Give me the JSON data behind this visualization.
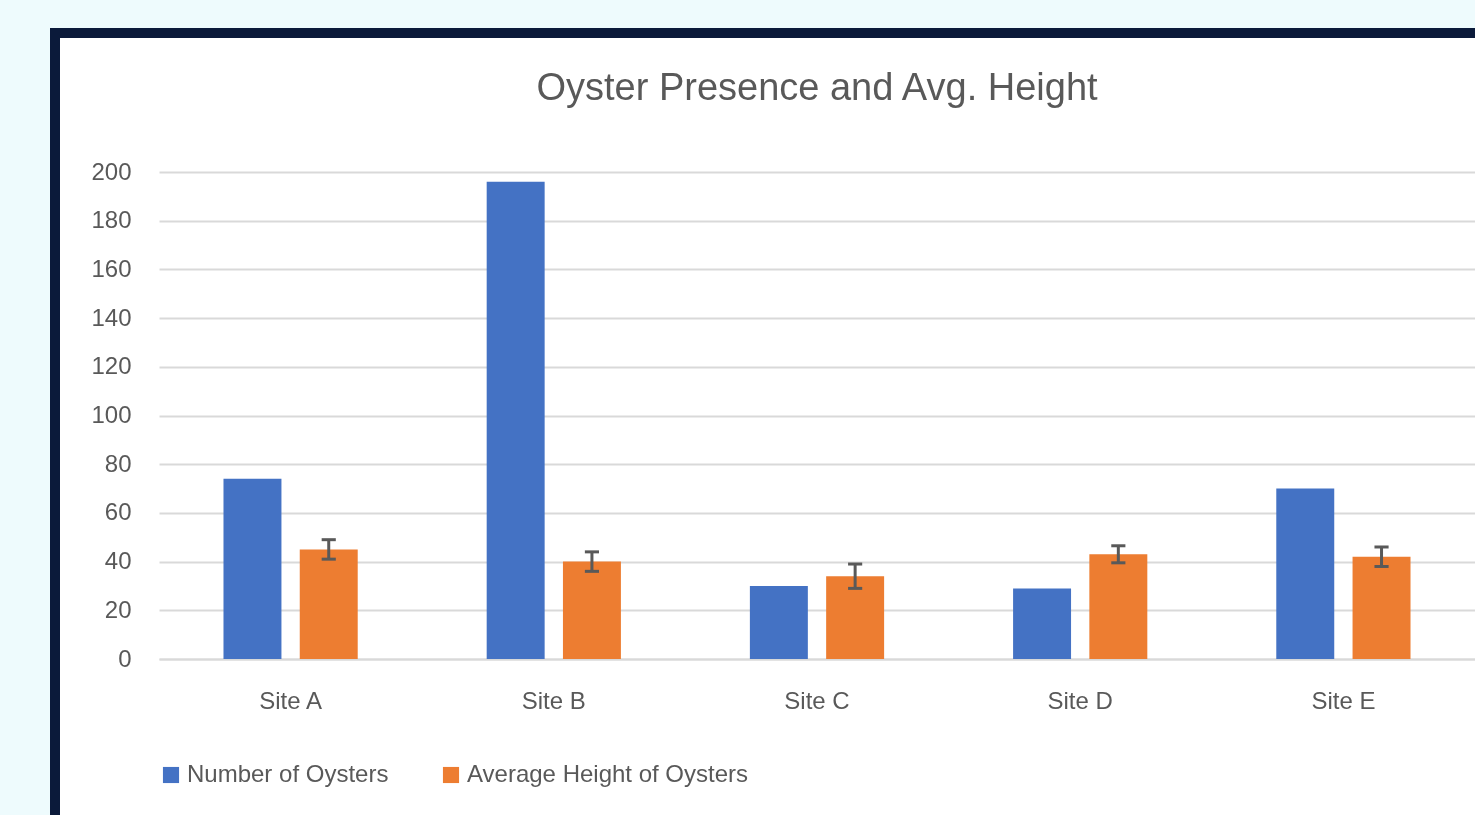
{
  "chart_data": {
    "type": "bar",
    "title": "Oyster Presence and Avg. Height",
    "categories": [
      "Site A",
      "Site B",
      "Site C",
      "Site D",
      "Site E"
    ],
    "series": [
      {
        "name": "Number of Oysters",
        "color": "#4472c4",
        "values": [
          74,
          196,
          30,
          29,
          70
        ]
      },
      {
        "name": "Average Height of Oysters",
        "color": "#ed7d31",
        "values": [
          45,
          40,
          34,
          43,
          42
        ],
        "errors": [
          4,
          4,
          5,
          3.5,
          4
        ]
      }
    ],
    "ylim": [
      0,
      200
    ],
    "yticks": [
      0,
      20,
      40,
      60,
      80,
      100,
      120,
      140,
      160,
      180,
      200
    ],
    "grid": "y",
    "legend": "bottom"
  }
}
